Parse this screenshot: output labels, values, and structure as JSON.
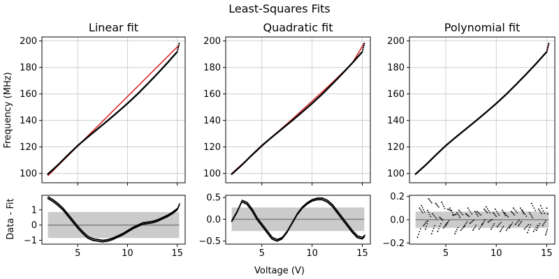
{
  "figure": {
    "suptitle": "Least-Squares Fits",
    "shared_xlabel": "Voltage (V)",
    "top_ylabel": "Frequency (MHz)",
    "bottom_ylabel": "Data - Fit"
  },
  "colors": {
    "data": "#000000",
    "fit": "#d62728",
    "band": "#c8c8c8",
    "zero_line": "#808080",
    "grid": "#b0b0b0"
  },
  "chart_data": [
    {
      "type": "scatter",
      "title": "Linear fit",
      "xlabel": "",
      "ylabel": "Frequency (MHz)",
      "xlim": [
        1.4,
        15.8
      ],
      "ylim": [
        93,
        203
      ],
      "xticks": [
        5,
        10,
        15
      ],
      "yticks": [
        100,
        120,
        140,
        160,
        180,
        200
      ],
      "grid": true,
      "series": [
        {
          "x": [
            2,
            3,
            4,
            5,
            6,
            7,
            8,
            9,
            10,
            11,
            12,
            13,
            14,
            15,
            15.2
          ],
          "values": [
            99.5,
            106.3,
            113.8,
            121.0,
            127.4,
            133.6,
            139.8,
            146.2,
            152.8,
            159.8,
            167.4,
            175.2,
            183.3,
            191.8,
            198.0
          ]
        }
      ],
      "fit": {
        "x": [
          2,
          15.2
        ],
        "values": [
          98.3,
          196.9
        ]
      }
    },
    {
      "type": "scatter",
      "title": "Quadratic fit",
      "xlabel": "",
      "ylabel": "",
      "xlim": [
        1.4,
        15.8
      ],
      "ylim": [
        93,
        203
      ],
      "xticks": [
        5,
        10,
        15
      ],
      "yticks": [
        100,
        120,
        140,
        160,
        180,
        200
      ],
      "grid": true,
      "series": [
        {
          "x": [
            2,
            3,
            4,
            5,
            6,
            7,
            8,
            9,
            10,
            11,
            12,
            13,
            14,
            15,
            15.2
          ],
          "values": [
            99.5,
            106.3,
            113.8,
            121.0,
            127.4,
            133.6,
            139.8,
            146.2,
            152.8,
            159.8,
            167.4,
            175.2,
            183.3,
            191.8,
            198.0
          ]
        }
      ],
      "fit": {
        "x": [
          2,
          4,
          6,
          8,
          10,
          12,
          14,
          15.2
        ],
        "values": [
          100.0,
          113.5,
          127.5,
          140.8,
          154.5,
          168.4,
          183.2,
          198.5
        ]
      }
    },
    {
      "type": "scatter",
      "title": "Polynomial fit",
      "xlabel": "",
      "ylabel": "",
      "xlim": [
        1.4,
        15.8
      ],
      "ylim": [
        93,
        203
      ],
      "xticks": [
        5,
        10,
        15
      ],
      "yticks": [
        100,
        120,
        140,
        160,
        180,
        200
      ],
      "grid": true,
      "series": [
        {
          "x": [
            2,
            3,
            4,
            5,
            6,
            7,
            8,
            9,
            10,
            11,
            12,
            13,
            14,
            15,
            15.2
          ],
          "values": [
            99.5,
            106.3,
            113.8,
            121.0,
            127.4,
            133.6,
            139.8,
            146.2,
            152.8,
            159.8,
            167.4,
            175.2,
            183.3,
            191.8,
            198.0
          ]
        }
      ],
      "fit": {
        "x": [
          2,
          3,
          4,
          5,
          6,
          7,
          8,
          9,
          10,
          11,
          12,
          13,
          14,
          15,
          15.2
        ],
        "values": [
          99.5,
          106.3,
          113.8,
          121.0,
          127.4,
          133.6,
          139.8,
          146.2,
          152.8,
          159.8,
          167.4,
          175.2,
          183.3,
          191.8,
          198.0
        ]
      }
    },
    {
      "type": "scatter",
      "title": "",
      "xlabel": "",
      "ylabel": "Data - Fit",
      "xlim": [
        1.4,
        15.8
      ],
      "ylim": [
        -1.25,
        1.95
      ],
      "xticks": [
        5,
        10,
        15
      ],
      "yticks": [
        -1,
        0,
        1
      ],
      "grid": false,
      "band": [
        -0.85,
        0.85
      ],
      "zero_line": 0,
      "series": [
        {
          "x": [
            2,
            2.5,
            3,
            3.5,
            4,
            4.5,
            5,
            5.5,
            6,
            6.5,
            7,
            7.5,
            8,
            8.5,
            9,
            9.5,
            10,
            10.5,
            11,
            11.5,
            12,
            12.5,
            13,
            13.5,
            14,
            14.5,
            15,
            15.2
          ],
          "values": [
            1.75,
            1.55,
            1.3,
            1.0,
            0.6,
            0.2,
            -0.2,
            -0.55,
            -0.85,
            -1.0,
            -1.05,
            -1.1,
            -1.05,
            -0.95,
            -0.8,
            -0.65,
            -0.45,
            -0.25,
            -0.1,
            0.05,
            0.1,
            0.15,
            0.25,
            0.4,
            0.55,
            0.75,
            1.0,
            1.3
          ]
        }
      ]
    },
    {
      "type": "scatter",
      "title": "",
      "xlabel": "Voltage (V)",
      "ylabel": "",
      "xlim": [
        1.4,
        15.8
      ],
      "ylim": [
        -0.57,
        0.55
      ],
      "xticks": [
        5,
        10,
        15
      ],
      "yticks": [
        -0.5,
        0.0,
        0.5
      ],
      "grid": false,
      "band": [
        -0.27,
        0.27
      ],
      "zero_line": 0,
      "series": [
        {
          "x": [
            2,
            2.5,
            3,
            3.5,
            4,
            4.5,
            5,
            5.5,
            6,
            6.5,
            7,
            7.5,
            8,
            8.5,
            9,
            9.5,
            10,
            10.5,
            11,
            11.5,
            12,
            12.5,
            13,
            13.5,
            14,
            14.5,
            15,
            15.2
          ],
          "values": [
            -0.05,
            0.15,
            0.4,
            0.35,
            0.2,
            0.0,
            -0.15,
            -0.3,
            -0.45,
            -0.5,
            -0.45,
            -0.3,
            -0.1,
            0.1,
            0.25,
            0.35,
            0.42,
            0.45,
            0.45,
            0.4,
            0.3,
            0.15,
            0.0,
            -0.15,
            -0.3,
            -0.42,
            -0.45,
            -0.4
          ]
        }
      ]
    },
    {
      "type": "scatter",
      "title": "",
      "xlabel": "",
      "ylabel": "",
      "xlim": [
        1.4,
        15.8
      ],
      "ylim": [
        -0.21,
        0.21
      ],
      "xticks": [
        5,
        10,
        15
      ],
      "yticks": [
        -0.2,
        0.0,
        0.2
      ],
      "grid": false,
      "band": [
        -0.07,
        0.07
      ],
      "zero_line": 0,
      "series": [
        {
          "x": [
            2.2,
            2.6,
            3.0,
            3.3,
            3.7,
            4.2,
            4.6,
            5.0,
            5.4,
            5.9,
            6.3,
            6.8,
            7.2,
            7.7,
            8.1,
            8.6,
            9.0,
            9.5,
            9.9,
            10.4,
            10.8,
            11.3,
            11.7,
            12.2,
            12.6,
            13.1,
            13.5,
            14.0,
            14.4,
            14.9,
            15.1
          ],
          "values": [
            -0.15,
            0.12,
            -0.08,
            0.18,
            0.05,
            -0.1,
            0.15,
            -0.05,
            0.1,
            -0.12,
            0.08,
            -0.06,
            0.1,
            -0.09,
            0.07,
            -0.04,
            0.11,
            -0.08,
            0.09,
            -0.1,
            0.06,
            -0.07,
            0.1,
            -0.05,
            0.08,
            -0.11,
            0.14,
            -0.09,
            0.12,
            -0.13,
            0.05
          ]
        },
        {
          "x": [
            2.4,
            2.8,
            3.2,
            3.6,
            4.0,
            4.4,
            4.8,
            5.2,
            5.7,
            6.1,
            6.5,
            7.0,
            7.4,
            7.9,
            8.3,
            8.8,
            9.2,
            9.7,
            10.1,
            10.6,
            11.0,
            11.5,
            11.9,
            12.4,
            12.8,
            13.3,
            13.7,
            14.2,
            14.6,
            15.0
          ],
          "values": [
            0.1,
            -0.05,
            0.08,
            -0.12,
            0.14,
            0.02,
            -0.07,
            0.09,
            0.04,
            0.06,
            -0.09,
            0.05,
            -0.03,
            0.07,
            -0.08,
            0.09,
            -0.02,
            0.06,
            -0.06,
            0.08,
            -0.09,
            0.07,
            -0.04,
            0.1,
            -0.08,
            0.06,
            -0.1,
            0.09,
            -0.05,
            0.1
          ]
        }
      ]
    }
  ]
}
